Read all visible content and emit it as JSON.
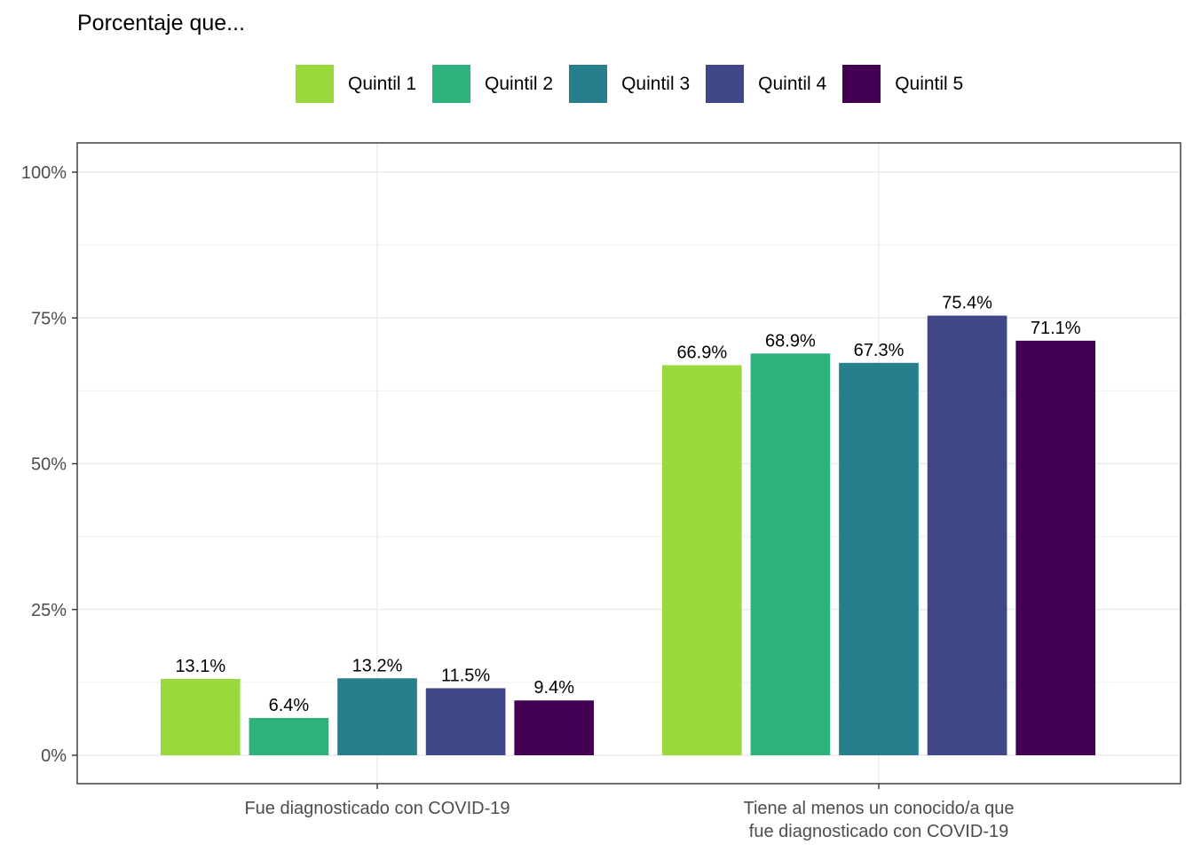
{
  "chart_data": {
    "type": "bar",
    "title": "Porcentaje que...",
    "categories": [
      [
        "Fue diagnosticado con COVID-19"
      ],
      [
        "Tiene al menos un conocido/a que",
        "fue diagnosticado con COVID-19"
      ]
    ],
    "series": [
      {
        "name": "Quintil 1",
        "color": "#9ad93c",
        "values": [
          13.1,
          66.9
        ],
        "labels": [
          "13.1%",
          "66.9%"
        ]
      },
      {
        "name": "Quintil 2",
        "color": "#2db27d",
        "values": [
          6.4,
          68.9
        ],
        "labels": [
          "6.4%",
          "68.9%"
        ]
      },
      {
        "name": "Quintil 3",
        "color": "#277f8e",
        "values": [
          13.2,
          67.3
        ],
        "labels": [
          "13.2%",
          "67.3%"
        ]
      },
      {
        "name": "Quintil 4",
        "color": "#3f4788",
        "values": [
          11.5,
          75.4
        ],
        "labels": [
          "11.5%",
          "75.4%"
        ]
      },
      {
        "name": "Quintil 5",
        "color": "#440154",
        "values": [
          9.4,
          71.1
        ],
        "labels": [
          "9.4%",
          "71.1%"
        ]
      }
    ],
    "ylim": [
      0,
      100
    ],
    "yticks": [
      0,
      25,
      50,
      75,
      100
    ],
    "ytick_labels": [
      "0%",
      "25%",
      "50%",
      "75%",
      "100%"
    ],
    "grid": true,
    "legend_position": "top"
  }
}
